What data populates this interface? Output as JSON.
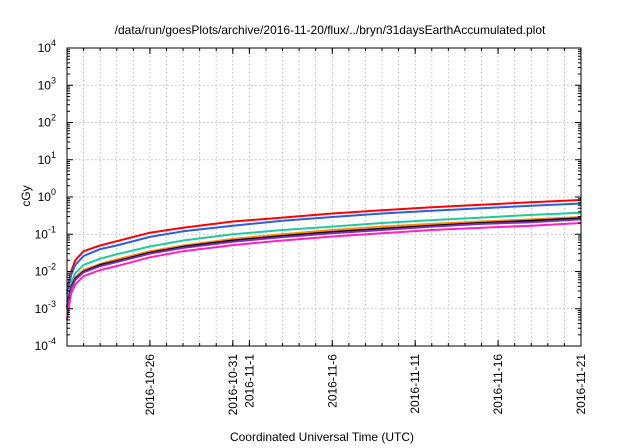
{
  "chart_data": {
    "type": "line",
    "title": "/data/run/goesPlots/archive/2016-11-20/flux/../bryn/31daysEarthAccumulated.plot",
    "xlabel": "Coordinated Universal Time (UTC)",
    "ylabel": "cGy",
    "yscale": "log",
    "ylim": [
      0.0001,
      10000
    ],
    "y_ticks": [
      {
        "base": "10",
        "exp": "-4"
      },
      {
        "base": "10",
        "exp": "-3"
      },
      {
        "base": "10",
        "exp": "-2"
      },
      {
        "base": "10",
        "exp": "-1"
      },
      {
        "base": "10",
        "exp": "0"
      },
      {
        "base": "10",
        "exp": "1"
      },
      {
        "base": "10",
        "exp": "2"
      },
      {
        "base": "10",
        "exp": "3"
      },
      {
        "base": "10",
        "exp": "4"
      }
    ],
    "xlim": [
      "2016-10-21",
      "2016-11-21"
    ],
    "x_ticks": [
      {
        "date": "2016-10-26",
        "label": "2016-10-26"
      },
      {
        "date": "2016-10-31",
        "label": "2016-10-31"
      },
      {
        "date": "2016-11-01",
        "label": "2016-11-1"
      },
      {
        "date": "2016-11-06",
        "label": "2016-11-6"
      },
      {
        "date": "2016-11-11",
        "label": "2016-11-11"
      },
      {
        "date": "2016-11-16",
        "label": "2016-11-16"
      },
      {
        "date": "2016-11-21",
        "label": "2016-11-21"
      }
    ],
    "grid": true,
    "x_dates": [
      "2016-10-21",
      "2016-10-21T06:00",
      "2016-10-21T12:00",
      "2016-10-22",
      "2016-10-23",
      "2016-10-24",
      "2016-10-26",
      "2016-10-28",
      "2016-10-31",
      "2016-11-03",
      "2016-11-06",
      "2016-11-09",
      "2016-11-12",
      "2016-11-15",
      "2016-11-18",
      "2016-11-21"
    ],
    "series": [
      {
        "color": "#ff0000",
        "values": [
          0.003,
          0.01,
          0.02,
          0.035,
          0.05,
          0.065,
          0.11,
          0.15,
          0.22,
          0.28,
          0.36,
          0.44,
          0.53,
          0.62,
          0.72,
          0.83
        ]
      },
      {
        "color": "#2b5fe0",
        "values": [
          0.0025,
          0.008,
          0.015,
          0.026,
          0.04,
          0.05,
          0.085,
          0.12,
          0.17,
          0.23,
          0.29,
          0.36,
          0.43,
          0.5,
          0.58,
          0.67
        ]
      },
      {
        "color": "#21c8a0",
        "values": [
          0.0015,
          0.005,
          0.009,
          0.015,
          0.022,
          0.029,
          0.047,
          0.068,
          0.1,
          0.13,
          0.16,
          0.2,
          0.24,
          0.28,
          0.33,
          0.38
        ]
      },
      {
        "color": "#ff8c00",
        "values": [
          0.0012,
          0.004,
          0.007,
          0.011,
          0.016,
          0.021,
          0.035,
          0.05,
          0.075,
          0.1,
          0.13,
          0.16,
          0.19,
          0.22,
          0.25,
          0.29
        ]
      },
      {
        "color": "#000000",
        "values": [
          0.0011,
          0.0038,
          0.0065,
          0.01,
          0.015,
          0.019,
          0.032,
          0.046,
          0.068,
          0.09,
          0.115,
          0.14,
          0.17,
          0.2,
          0.23,
          0.27
        ]
      },
      {
        "color": "#7b2fbf",
        "values": [
          0.001,
          0.0035,
          0.006,
          0.0095,
          0.014,
          0.018,
          0.03,
          0.043,
          0.063,
          0.084,
          0.107,
          0.13,
          0.16,
          0.19,
          0.21,
          0.25
        ]
      },
      {
        "color": "#ff22bb",
        "values": [
          0.0005,
          0.0025,
          0.0045,
          0.0075,
          0.011,
          0.014,
          0.024,
          0.035,
          0.051,
          0.068,
          0.087,
          0.107,
          0.13,
          0.15,
          0.17,
          0.2
        ]
      }
    ]
  }
}
